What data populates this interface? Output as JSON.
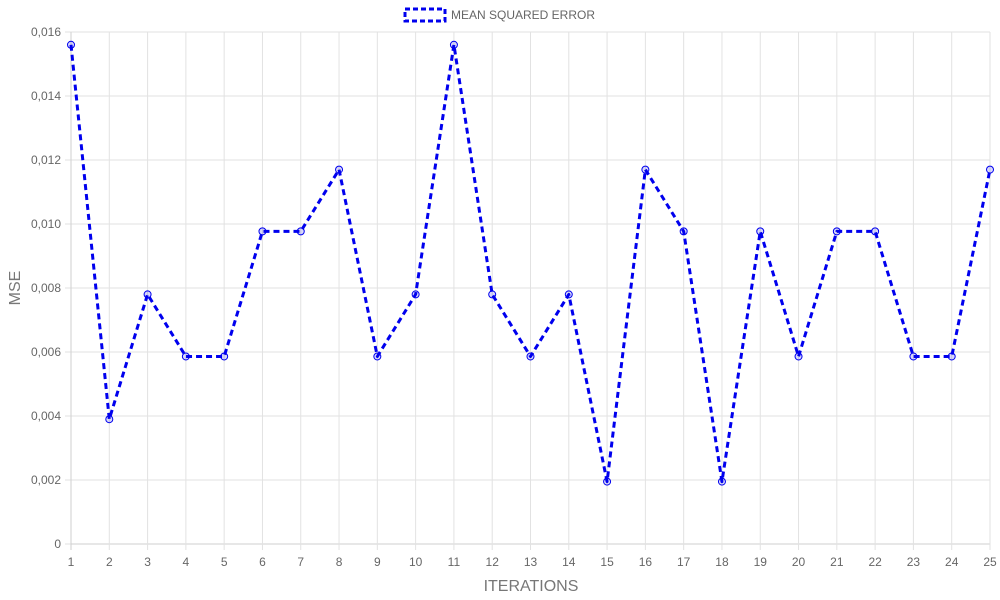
{
  "chart_data": {
    "type": "line",
    "title": "",
    "xlabel": "ITERATIONS",
    "ylabel": "MSE",
    "ylim": [
      0,
      0.016
    ],
    "y_ticks": [
      "0",
      "0,002",
      "0,004",
      "0,006",
      "0,008",
      "0,010",
      "0,012",
      "0,014",
      "0,016"
    ],
    "y_tick_values": [
      0,
      0.002,
      0.004,
      0.006,
      0.008,
      0.01,
      0.012,
      0.014,
      0.016
    ],
    "categories": [
      "1",
      "2",
      "3",
      "4",
      "5",
      "6",
      "7",
      "8",
      "9",
      "10",
      "11",
      "12",
      "13",
      "14",
      "15",
      "16",
      "17",
      "18",
      "19",
      "20",
      "21",
      "22",
      "23",
      "24",
      "25"
    ],
    "grid": true,
    "legend_position": "top-center",
    "series": [
      {
        "name": "MEAN SQUARED ERROR",
        "color": "#0000ee",
        "line_style": "dashed",
        "values": [
          0.0156,
          0.0039,
          0.0078,
          0.00586,
          0.00586,
          0.00977,
          0.00977,
          0.0117,
          0.00586,
          0.0078,
          0.0156,
          0.0078,
          0.00586,
          0.0078,
          0.00195,
          0.0117,
          0.00977,
          0.00195,
          0.00977,
          0.00586,
          0.00977,
          0.00977,
          0.00586,
          0.00586,
          0.0117
        ]
      }
    ]
  }
}
